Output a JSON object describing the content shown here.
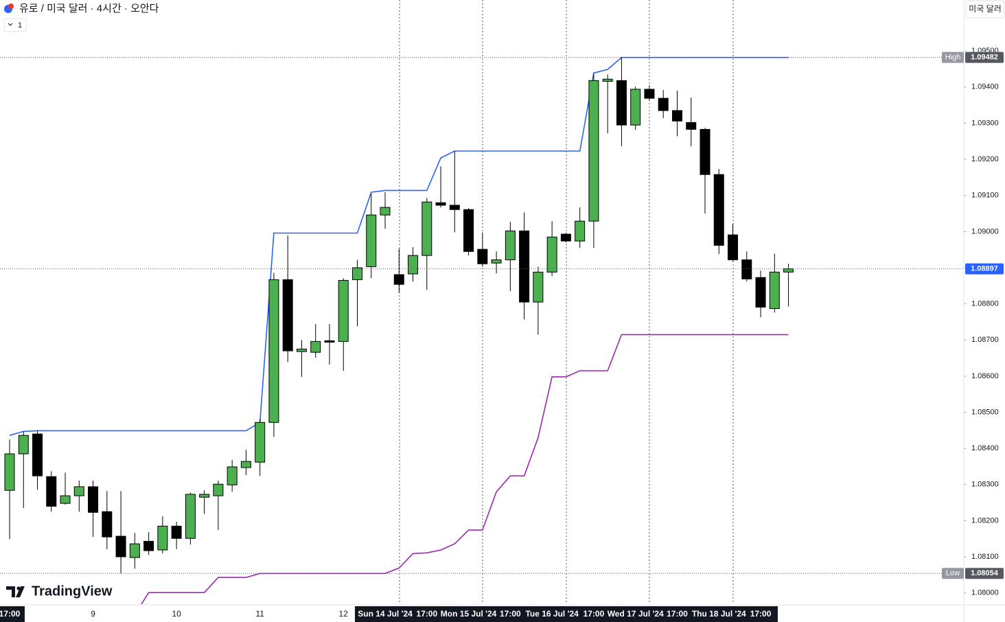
{
  "header": {
    "title": "유로 / 미국 달러 · 4시간 · 오안다",
    "interval_count": "1",
    "currency_button": "미국 달러",
    "logo": "TradingView"
  },
  "chart_data": {
    "type": "candlestick",
    "categories": [
      "17:00",
      null,
      null,
      null,
      null,
      null,
      "9",
      null,
      null,
      null,
      null,
      null,
      "10",
      null,
      null,
      null,
      null,
      null,
      "11",
      null,
      null,
      null,
      null,
      null,
      "12",
      null,
      null,
      "Sun 14 Jul '24",
      null,
      null,
      "17:00",
      null,
      null,
      "Mon 15 Jul '24",
      null,
      null,
      "17:00",
      null,
      null,
      "Tue 16 Jul '24",
      null,
      null,
      "17:00",
      null,
      null,
      "Wed 17 Jul '24",
      null,
      null,
      "17:00",
      null,
      null,
      "Thu 18 Jul '24",
      null,
      null,
      "17:00",
      null,
      null
    ],
    "open": [
      1.08284,
      1.08385,
      1.0844,
      1.08322,
      1.08248,
      1.08269,
      1.08294,
      1.08225,
      1.08157,
      1.08098,
      1.08143,
      1.08119,
      1.08185,
      1.08151,
      1.08265,
      1.08269,
      1.08299,
      1.08347,
      1.08362,
      1.08472,
      1.08867,
      1.08668,
      1.08666,
      1.08698,
      1.08696,
      1.08867,
      1.08903,
      1.09046,
      1.08881,
      1.08883,
      1.08934,
      1.0908,
      1.09073,
      1.09061,
      1.08951,
      1.08913,
      1.08922,
      1.09002,
      1.08805,
      1.08888,
      1.08993,
      1.08974,
      1.09029,
      1.09416,
      1.09418,
      1.09295,
      1.09394,
      1.09369,
      1.09335,
      1.09302,
      1.09283,
      1.09158,
      1.08991,
      1.08922,
      1.08873,
      1.08787,
      1.08888
    ],
    "high": [
      1.08425,
      1.08447,
      1.08449,
      1.08337,
      1.08333,
      1.08311,
      1.08311,
      1.08282,
      1.08282,
      1.08166,
      1.08168,
      1.08212,
      1.08197,
      1.08278,
      1.08284,
      1.08311,
      1.08368,
      1.08396,
      1.08482,
      1.08886,
      1.08989,
      1.087,
      1.08744,
      1.08744,
      1.08871,
      1.08922,
      1.09105,
      1.09109,
      1.08953,
      1.08957,
      1.09093,
      1.09181,
      1.09223,
      1.09065,
      1.08998,
      1.08945,
      1.09027,
      1.09053,
      1.08903,
      1.09029,
      1.08997,
      1.09067,
      1.09437,
      1.09435,
      1.09482,
      1.09401,
      1.09405,
      1.09392,
      1.0939,
      1.09371,
      1.09287,
      1.09173,
      1.09021,
      1.08945,
      1.08892,
      1.08939,
      1.08911
    ],
    "low": [
      1.08149,
      1.08235,
      1.08286,
      1.08225,
      1.08244,
      1.08225,
      1.08155,
      1.08121,
      1.08054,
      1.08067,
      1.08105,
      1.08109,
      1.08121,
      1.08134,
      1.08219,
      1.08174,
      1.0828,
      1.08326,
      1.08324,
      1.08432,
      1.08639,
      1.08598,
      1.08651,
      1.08632,
      1.08615,
      1.08738,
      1.08871,
      1.09008,
      1.08831,
      1.08862,
      1.08839,
      1.09067,
      1.08998,
      1.08934,
      1.08903,
      1.08884,
      1.08835,
      1.08757,
      1.08715,
      1.08877,
      1.0897,
      1.08955,
      1.08955,
      1.09272,
      1.09236,
      1.09282,
      1.09363,
      1.09314,
      1.09264,
      1.09236,
      1.0905,
      1.08938,
      1.08917,
      1.08862,
      1.08763,
      1.08776,
      1.08793
    ],
    "close": [
      1.08385,
      1.08436,
      1.08324,
      1.0824,
      1.08269,
      1.08294,
      1.08223,
      1.08155,
      1.081,
      1.08136,
      1.08117,
      1.08185,
      1.08151,
      1.08273,
      1.08273,
      1.08301,
      1.08349,
      1.08364,
      1.08472,
      1.08867,
      1.0867,
      1.08675,
      1.08696,
      1.08694,
      1.08865,
      1.089,
      1.09046,
      1.09067,
      1.08854,
      1.08934,
      1.09082,
      1.09073,
      1.09061,
      1.08945,
      1.08911,
      1.08922,
      1.09002,
      1.08805,
      1.08888,
      1.08985,
      1.08974,
      1.09029,
      1.09418,
      1.09422,
      1.09295,
      1.09394,
      1.09369,
      1.09335,
      1.09306,
      1.09283,
      1.09158,
      1.08962,
      1.08922,
      1.08869,
      1.08791,
      1.08888,
      1.08897
    ],
    "up_color": "#4caf50",
    "down_color": "#000000",
    "series": [
      {
        "color": "#2962ff",
        "values": [
          1.08436,
          1.08447,
          1.08449,
          1.08449,
          1.08449,
          1.08449,
          1.08449,
          1.08449,
          1.08449,
          1.08449,
          1.08449,
          1.08449,
          1.08449,
          1.08449,
          1.08449,
          1.08449,
          1.08449,
          1.08449,
          1.08472,
          1.08996,
          1.08996,
          1.08996,
          1.08996,
          1.08996,
          1.08996,
          1.08996,
          1.09109,
          1.09114,
          1.09114,
          1.09114,
          1.09114,
          1.09204,
          1.09223,
          1.09223,
          1.09223,
          1.09223,
          1.09223,
          1.09223,
          1.09223,
          1.09223,
          1.09223,
          1.09223,
          1.09439,
          1.09449,
          1.09482,
          1.09482,
          1.09482,
          1.09482,
          1.09482,
          1.09482,
          1.09482,
          1.09482,
          1.09482,
          1.09482,
          1.09482,
          1.09482,
          1.09482
        ]
      },
      {
        "color": "#9c27b0",
        "values": [
          null,
          null,
          null,
          null,
          null,
          null,
          null,
          null,
          null,
          1.0794,
          1.08001,
          1.08001,
          1.08001,
          1.08001,
          1.08001,
          1.08043,
          1.08043,
          1.08043,
          1.08054,
          1.08054,
          1.08054,
          1.08054,
          1.08054,
          1.08054,
          1.08054,
          1.08054,
          1.08054,
          1.08054,
          1.08069,
          1.08109,
          1.08111,
          1.08119,
          1.08136,
          1.08174,
          1.08174,
          1.0828,
          1.08324,
          1.08324,
          1.0843,
          1.08598,
          1.08598,
          1.08615,
          1.08615,
          1.08615,
          1.08715,
          1.08715,
          1.08715,
          1.08715,
          1.08715,
          1.08715,
          1.08715,
          1.08715,
          1.08715,
          1.08715,
          1.08715,
          1.08715,
          1.08715
        ]
      }
    ],
    "price_markers": [
      {
        "label": "High",
        "value": 1.09482,
        "color": "#555861"
      },
      {
        "value": 1.08897,
        "color": "#2962ff"
      },
      {
        "label": "Low",
        "value": 1.08054,
        "color": "#555861"
      }
    ],
    "ylim": [
      1.07969,
      1.09641
    ],
    "yticks": [
      {
        "value": 1.08,
        "label": "1.08000"
      },
      {
        "value": 1.081,
        "label": "1.08100"
      },
      {
        "value": 1.082,
        "label": "1.08200"
      },
      {
        "value": 1.083,
        "label": "1.08300"
      },
      {
        "value": 1.084,
        "label": "1.08400"
      },
      {
        "value": 1.085,
        "label": "1.08500"
      },
      {
        "value": 1.086,
        "label": "1.08600"
      },
      {
        "value": 1.087,
        "label": "1.08700"
      },
      {
        "value": 1.088,
        "label": "1.08800"
      },
      {
        "value": 1.089,
        "label": "1.08900"
      },
      {
        "value": 1.09,
        "label": "1.09000"
      },
      {
        "value": 1.091,
        "label": "1.09100"
      },
      {
        "value": 1.092,
        "label": "1.09200"
      },
      {
        "value": 1.093,
        "label": "1.09300"
      },
      {
        "value": 1.094,
        "label": "1.09400"
      },
      {
        "value": 1.095,
        "label": "1.09500"
      }
    ]
  }
}
